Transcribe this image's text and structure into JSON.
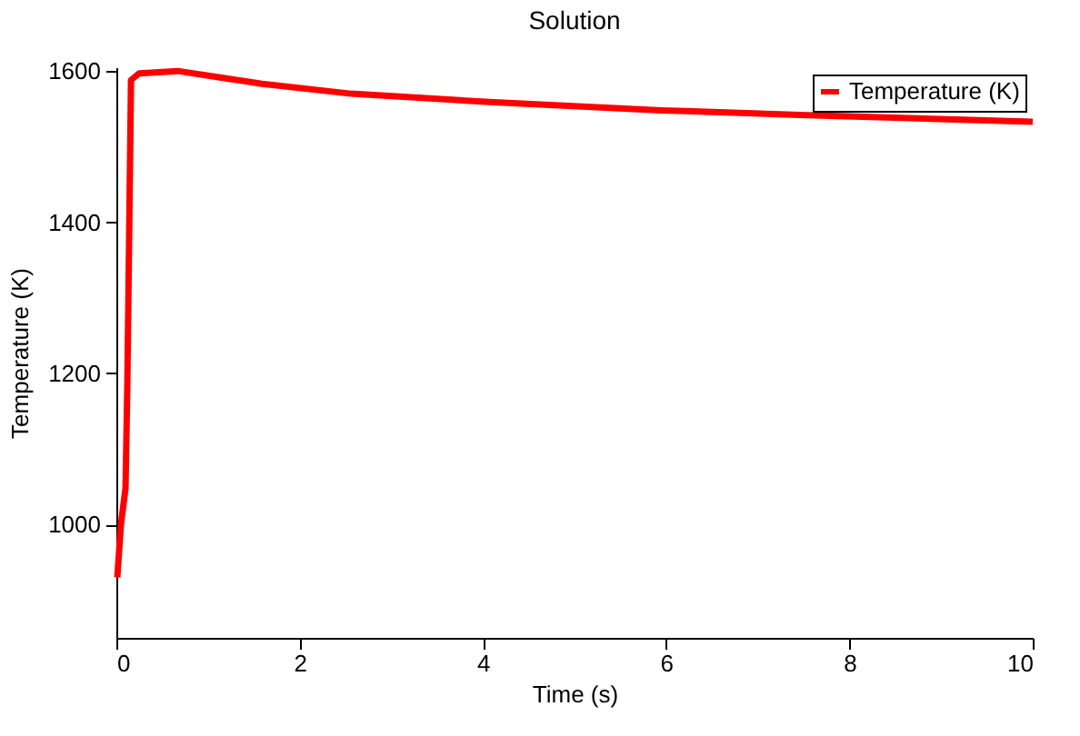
{
  "chart_data": {
    "type": "line",
    "title": "Solution",
    "xlabel": "Time (s)",
    "ylabel": "Temperature (K)",
    "x": [
      0.01,
      0.05,
      0.1,
      0.12,
      0.16,
      0.25,
      0.67,
      1.59,
      2.56,
      4.07,
      5.95,
      7.46,
      10
    ],
    "series": [
      {
        "name": "Temperature (K)",
        "color": "#ff0000",
        "values": [
          930,
          1000,
          1048,
          1188,
          1588,
          1597,
          1600,
          1583,
          1570,
          1559,
          1548,
          1542,
          1533
        ]
      }
    ],
    "xlim": [
      0,
      10
    ],
    "xticks": [
      0,
      2,
      4,
      6,
      8,
      10
    ],
    "ylim": [
      850,
      1605
    ],
    "yticks": [
      1000,
      1200,
      1400,
      1600
    ],
    "grid": false,
    "legend": "top right",
    "marker": "none",
    "line_style": "solid"
  }
}
